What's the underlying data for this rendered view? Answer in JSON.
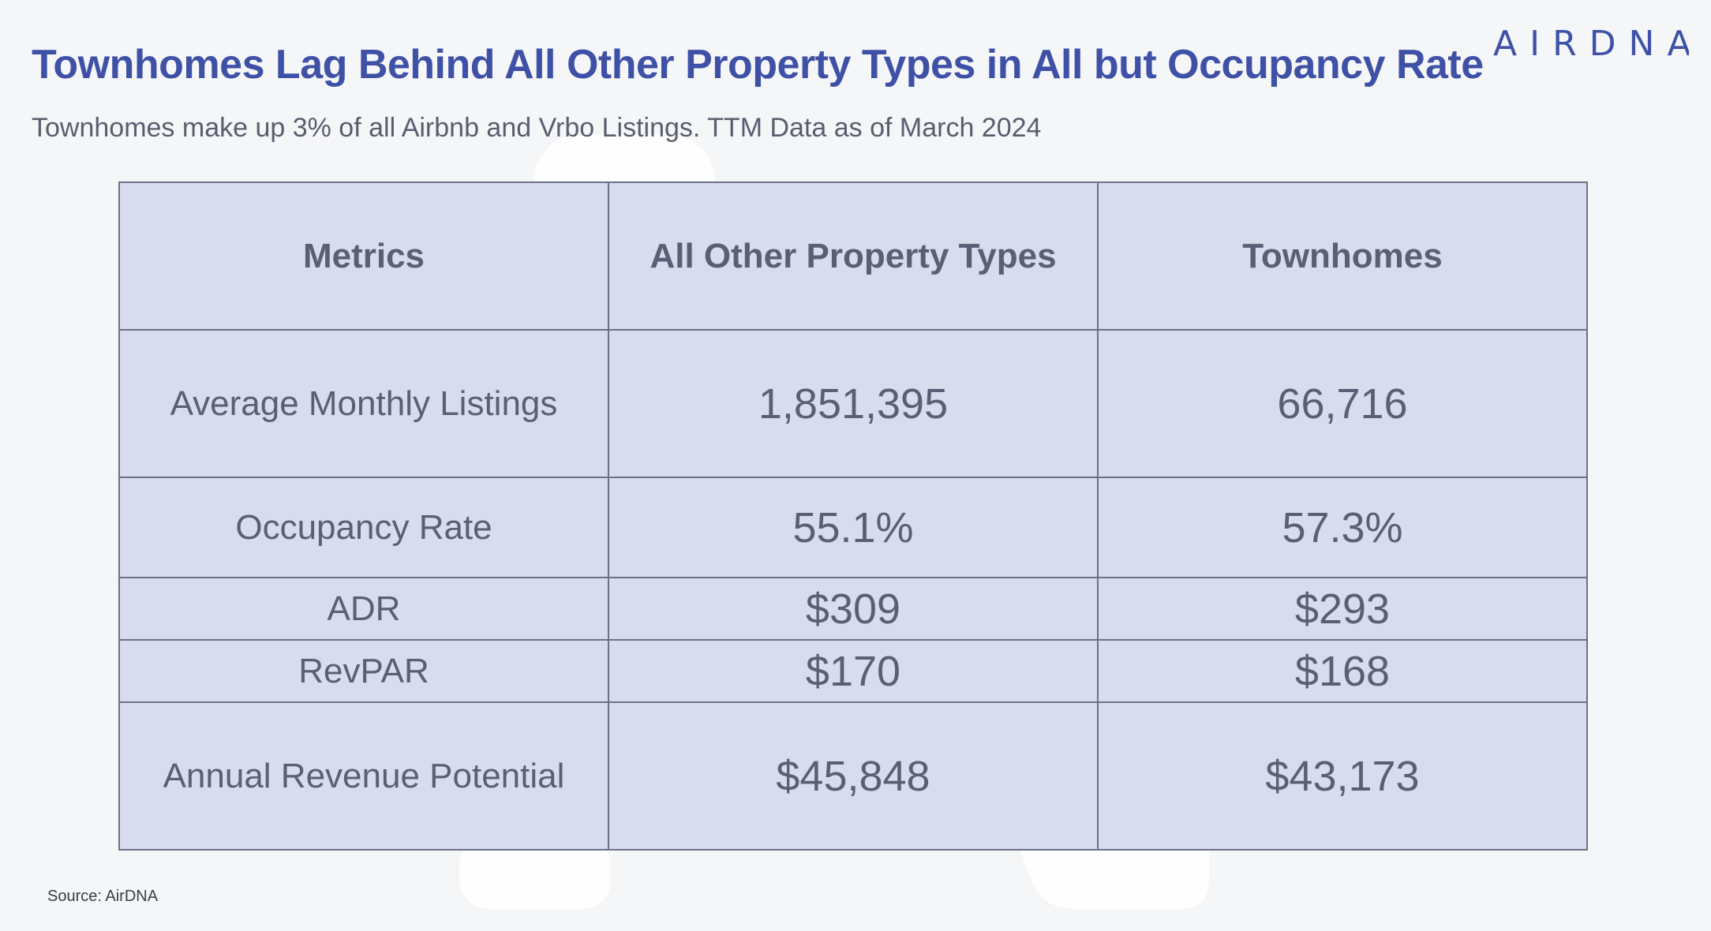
{
  "title": "Townhomes Lag Behind All Other Property Types in All but Occupancy Rate",
  "subtitle": "Townhomes make up 3% of all Airbnb and Vrbo Listings. TTM Data as of March 2024",
  "logo": {
    "text": "AIRDNA"
  },
  "source": "Source: AirDNA",
  "colors": {
    "title": "#3f51a6",
    "table_fill": "#d8dced",
    "table_border": "#6e7185",
    "text": "#5b5f75",
    "background": "#f5f6f8"
  },
  "chart_data": {
    "type": "table",
    "columns": [
      "Metrics",
      "All Other Property Types",
      "Townhomes"
    ],
    "rows": [
      {
        "metric": "Average Monthly Listings",
        "all_other": "1,851,395",
        "townhomes": "66,716"
      },
      {
        "metric": "Occupancy Rate",
        "all_other": "55.1%",
        "townhomes": "57.3%"
      },
      {
        "metric": "ADR",
        "all_other": "$309",
        "townhomes": "$293"
      },
      {
        "metric": "RevPAR",
        "all_other": "$170",
        "townhomes": "$168"
      },
      {
        "metric": "Annual Revenue Potential",
        "all_other": "$45,848",
        "townhomes": "$43,173"
      }
    ]
  }
}
